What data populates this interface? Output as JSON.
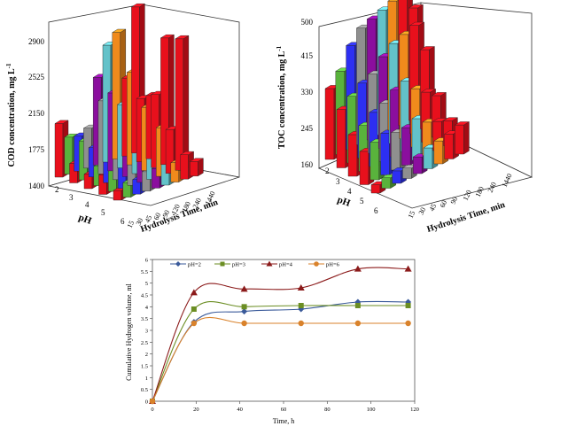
{
  "charts": {
    "cod": {
      "ylabel_main": "COD concentration, mg L",
      "ylabel_sup": "-1",
      "zticks": [
        "1400",
        "1775",
        "2150",
        "2525",
        "2900"
      ],
      "ph_label": "pH",
      "ph_ticks": [
        "2",
        "3",
        "4",
        "5",
        "6"
      ],
      "time_label": "Hydrolysis Time, min",
      "time_ticks": [
        "15",
        "30",
        "45",
        "60",
        "90",
        "120",
        "180",
        "240",
        "1440"
      ]
    },
    "toc": {
      "ylabel_main": "TOC concentration, mg L",
      "ylabel_sup": "-1",
      "zticks": [
        "160",
        "245",
        "330",
        "415",
        "500"
      ],
      "ph_label": "pH",
      "ph_ticks": [
        "2",
        "3",
        "4",
        "5",
        "6"
      ],
      "time_label": "Hydrolysis Time, min",
      "time_ticks": [
        "15",
        "30",
        "45",
        "60",
        "90",
        "120",
        "180",
        "240",
        "1440"
      ]
    },
    "h2": {
      "ylabel": "Cumulative Hydrogen volume, ml",
      "xlabel": "Time, h",
      "yticks": [
        "0",
        "0.5",
        "1",
        "1.5",
        "2",
        "2.5",
        "3",
        "3.5",
        "4",
        "4.5",
        "5",
        "5.5",
        "6"
      ],
      "xticks": [
        "0",
        "20",
        "40",
        "60",
        "80",
        "100",
        "120"
      ],
      "legend": [
        "pH=2",
        "pH=3",
        "pH=4",
        "pH=6"
      ]
    }
  },
  "colors": {
    "time_series": [
      "#e8101c",
      "#59b33c",
      "#2d2ff2",
      "#8f8f8f",
      "#8b0e9e",
      "#63c2c9",
      "#f08a1c",
      "#e8101c",
      "#e8101c"
    ],
    "ph2": "#3a5a9a",
    "ph3": "#6b8e23",
    "ph4": "#8b1a1a",
    "ph6": "#d9822b"
  },
  "chart_data": [
    {
      "type": "bar3d",
      "zlim": [
        1400,
        2900
      ],
      "zticks": [
        1400,
        1775,
        2150,
        2525,
        2900
      ],
      "categories_ph": [
        "2",
        "3",
        "4",
        "5",
        "6"
      ],
      "categories_time": [
        "15",
        "30",
        "45",
        "60",
        "90",
        "120",
        "180",
        "240",
        "1440"
      ],
      "values": [
        [
          1950,
          1780,
          1760,
          1810,
          2300,
          2600,
          2700,
          2200,
          2900
        ],
        [
          1600,
          1800,
          1700,
          2150,
          2200,
          2050,
          2350,
          2050,
          2050
        ],
        [
          1550,
          1600,
          1750,
          2150,
          2050,
          2000,
          2050,
          2150,
          2700
        ],
        [
          1600,
          1650,
          1700,
          1750,
          1950,
          1850,
          1900,
          1850,
          2750
        ],
        [
          1500,
          1550,
          1550,
          1600,
          1600,
          1650,
          1600,
          1650,
          1550
        ]
      ]
    },
    {
      "type": "bar3d",
      "zlim": [
        160,
        500
      ],
      "zticks": [
        160,
        245,
        330,
        415,
        500
      ],
      "categories_ph": [
        "2",
        "3",
        "4",
        "5",
        "6"
      ],
      "categories_time": [
        "15",
        "30",
        "45",
        "60",
        "90",
        "120",
        "180",
        "240",
        "1440"
      ],
      "values": [
        [
          330,
          360,
          410,
          440,
          450,
          460,
          470,
          500,
          430
        ],
        [
          300,
          320,
          340,
          350,
          380,
          400,
          410,
          420,
          350
        ],
        [
          260,
          270,
          290,
          300,
          320,
          330,
          300,
          280,
          260
        ],
        [
          240,
          250,
          260,
          250,
          250,
          260,
          240,
          230,
          220
        ],
        [
          180,
          185,
          190,
          185,
          200,
          210,
          215,
          220,
          230
        ]
      ]
    },
    {
      "type": "line",
      "xlabel": "Time, h",
      "ylabel": "Cumulative Hydrogen volume, ml",
      "xlim": [
        0,
        120
      ],
      "ylim": [
        0,
        6
      ],
      "x": [
        0,
        19,
        42,
        68,
        94,
        117
      ],
      "series": [
        {
          "name": "pH=2",
          "values": [
            0,
            3.35,
            3.8,
            3.9,
            4.2,
            4.2
          ]
        },
        {
          "name": "pH=3",
          "values": [
            0,
            3.9,
            4.0,
            4.05,
            4.05,
            4.05
          ]
        },
        {
          "name": "pH=4",
          "values": [
            0,
            4.6,
            4.75,
            4.8,
            5.6,
            5.6
          ]
        },
        {
          "name": "pH=6",
          "values": [
            0,
            3.3,
            3.3,
            3.3,
            3.3,
            3.3
          ]
        }
      ]
    }
  ]
}
